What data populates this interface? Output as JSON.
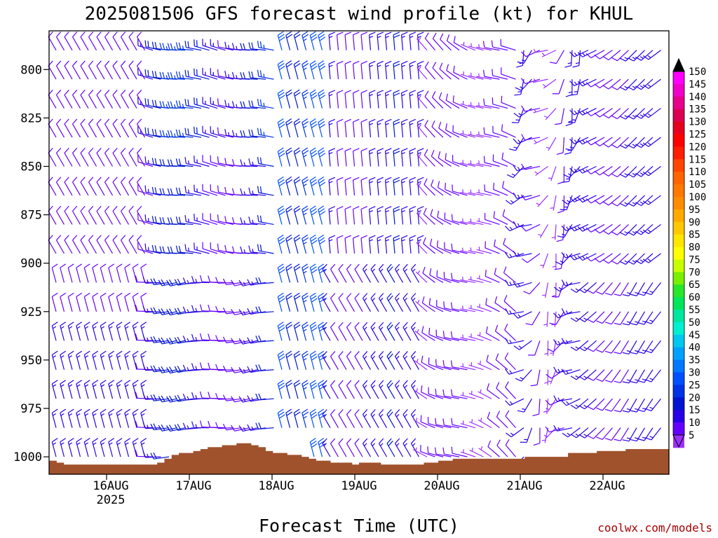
{
  "chart_data": {
    "type": "wind-barb-profile",
    "title": "2025081506 GFS forecast wind profile (kt) for KHUL",
    "xlabel": "Forecast Time (UTC)",
    "credit": "coolwx.com/models",
    "y_axis": {
      "label": "",
      "ticks": [
        "800",
        "825",
        "850",
        "875",
        "900",
        "925",
        "950",
        "975",
        "1000"
      ],
      "range_hpa": [
        780,
        1009
      ],
      "inverted": true
    },
    "x_axis": {
      "ticks": [
        {
          "label": "16AUG",
          "sublabel": "2025"
        },
        {
          "label": "17AUG",
          "sublabel": ""
        },
        {
          "label": "18AUG",
          "sublabel": ""
        },
        {
          "label": "19AUG",
          "sublabel": ""
        },
        {
          "label": "20AUG",
          "sublabel": ""
        },
        {
          "label": "21AUG",
          "sublabel": ""
        },
        {
          "label": "22AUG",
          "sublabel": ""
        }
      ],
      "range_hours_from_init": [
        -5,
        185
      ]
    },
    "terrain": {
      "color": "#a0522d",
      "surface_pressure_hpa": [
        1002,
        1003,
        1004,
        1004,
        1004,
        1004,
        1004,
        1004,
        1004,
        1004,
        1004,
        1004,
        1004,
        1004,
        1004,
        1003,
        1001,
        999,
        998,
        998,
        997,
        996,
        995,
        995,
        994,
        994,
        993,
        993,
        994,
        995,
        997,
        998,
        998,
        999,
        999,
        1000,
        1001,
        1002,
        1002,
        1003,
        1003,
        1003,
        1004,
        1003,
        1003,
        1003,
        1004,
        1004,
        1004,
        1004,
        1004,
        1004,
        1003,
        1003,
        1002,
        1002,
        1001,
        1001,
        1001,
        1001,
        1001,
        1001,
        1001,
        1001,
        1001,
        1001,
        1000,
        1000,
        1000,
        1000,
        1000,
        1000,
        998,
        998,
        998,
        998,
        997,
        997,
        997,
        997,
        996,
        996,
        996,
        996,
        996,
        996
      ]
    },
    "wind_profile_hpa": [
      790,
      805,
      820,
      835,
      850,
      865,
      880,
      895,
      910,
      925,
      940,
      955,
      970,
      985,
      1000
    ],
    "wind_time_steps": 76,
    "colorbar": {
      "unit": "kt",
      "labels": [
        "150",
        "145",
        "140",
        "135",
        "130",
        "125",
        "120",
        "115",
        "110",
        "105",
        "100",
        "95",
        "90",
        "85",
        "80",
        "75",
        "70",
        "65",
        "60",
        "55",
        "50",
        "45",
        "40",
        "35",
        "30",
        "25",
        "20",
        "15",
        "10",
        "5"
      ],
      "colors": [
        "#ff00ff",
        "#f000c8",
        "#e6008c",
        "#dc0050",
        "#e6001e",
        "#ff0000",
        "#ff1e00",
        "#ff4600",
        "#ff6400",
        "#ff7800",
        "#ff8c00",
        "#ffaa00",
        "#ffc800",
        "#ffe600",
        "#ffff00",
        "#c8ff00",
        "#78f000",
        "#28e628",
        "#00e65a",
        "#00e6a0",
        "#00f0d2",
        "#00c8f0",
        "#00a0ff",
        "#0078ff",
        "#0050ff",
        "#0032e6",
        "#0014d2",
        "#2800e6",
        "#6400ff",
        "#9b30ff"
      ]
    },
    "grid": false,
    "legend": "colorbar-right"
  }
}
